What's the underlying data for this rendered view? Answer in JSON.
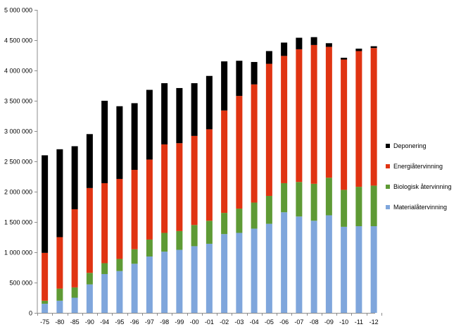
{
  "chart_data": {
    "type": "bar",
    "stacked": true,
    "title": "",
    "xlabel": "",
    "ylabel": "",
    "ylim": [
      0,
      5000000
    ],
    "yticks": [
      0,
      500000,
      1000000,
      1500000,
      2000000,
      2500000,
      3000000,
      3500000,
      4000000,
      4500000,
      5000000
    ],
    "ytick_labels": [
      "0",
      "500 000",
      "1 000 000",
      "1 500 000",
      "2 000 000",
      "2 500 000",
      "3 000 000",
      "3 500 000",
      "4 000 000",
      "4 500 000",
      "5 000 000"
    ],
    "grid": false,
    "legend_position": "right",
    "categories": [
      "-75",
      "-80",
      "-85",
      "-90",
      "-94",
      "-95",
      "-96",
      "-97",
      "-98",
      "-99",
      "-00",
      "-01",
      "-02",
      "-03",
      "-04",
      "-05",
      "-06",
      "-07",
      "-08",
      "-09",
      "-10",
      "-11",
      "-12"
    ],
    "series": [
      {
        "name": "Materialåtervinning",
        "color": "#7fa6dc",
        "values": [
          150000,
          200000,
          250000,
          470000,
          640000,
          690000,
          810000,
          930000,
          1010000,
          1040000,
          1100000,
          1140000,
          1300000,
          1320000,
          1390000,
          1470000,
          1660000,
          1590000,
          1520000,
          1610000,
          1420000,
          1430000,
          1430000
        ]
      },
      {
        "name": "Biologisk återvinning",
        "color": "#5e9a35",
        "values": [
          50000,
          200000,
          170000,
          190000,
          180000,
          200000,
          240000,
          280000,
          310000,
          310000,
          350000,
          380000,
          350000,
          400000,
          430000,
          460000,
          480000,
          570000,
          610000,
          620000,
          610000,
          650000,
          670000
        ]
      },
      {
        "name": "Energiåtervinning",
        "color": "#e03412",
        "values": [
          790000,
          850000,
          1290000,
          1400000,
          1320000,
          1320000,
          1310000,
          1320000,
          1460000,
          1450000,
          1470000,
          1510000,
          1690000,
          1860000,
          1950000,
          2180000,
          2100000,
          2190000,
          2290000,
          2160000,
          2150000,
          2240000,
          2270000
        ]
      },
      {
        "name": "Deponering",
        "color": "#000000",
        "values": [
          1610000,
          1450000,
          1040000,
          890000,
          1360000,
          1200000,
          1100000,
          1150000,
          1010000,
          910000,
          870000,
          880000,
          810000,
          580000,
          370000,
          210000,
          220000,
          190000,
          130000,
          60000,
          30000,
          40000,
          30000
        ]
      }
    ]
  }
}
